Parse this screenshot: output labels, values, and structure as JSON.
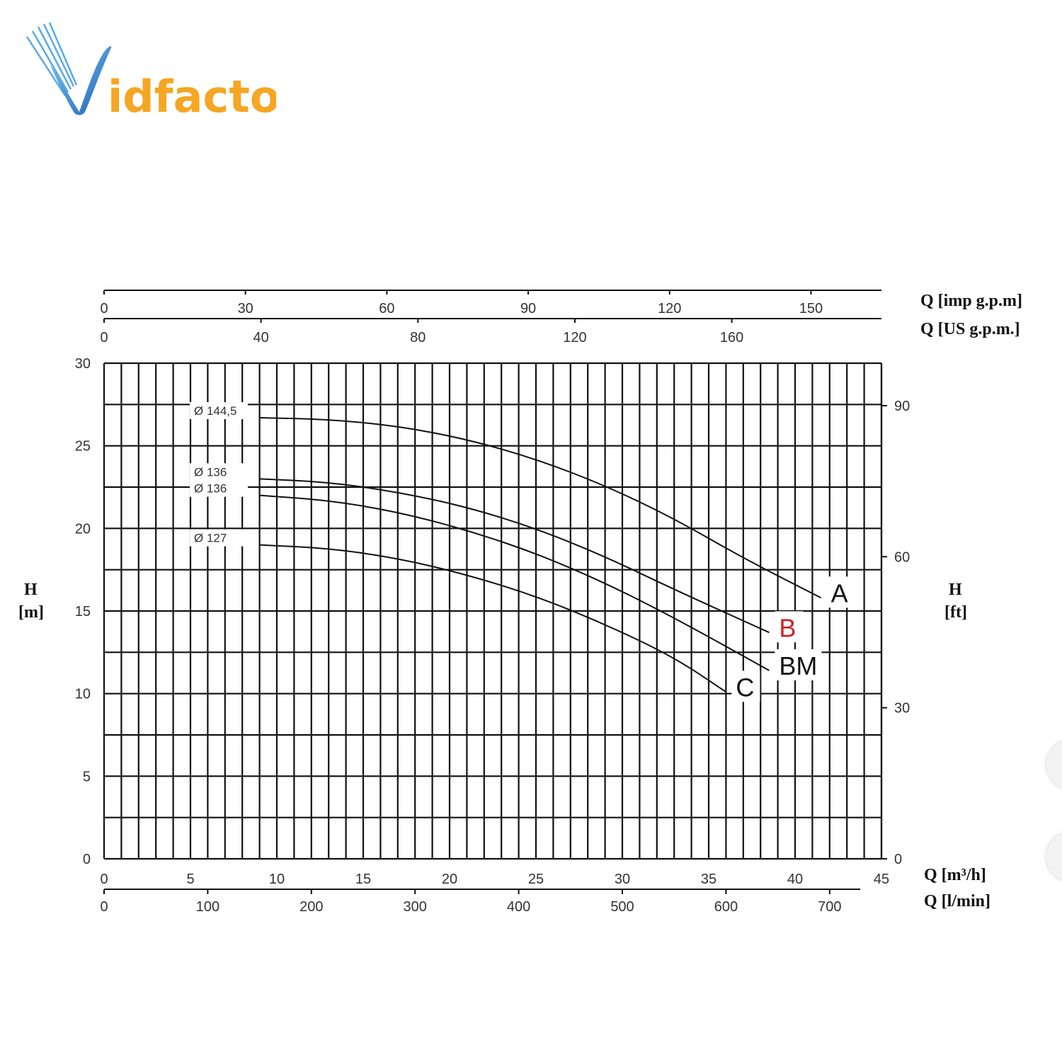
{
  "logo": {
    "wordmark_accent": "V",
    "wordmark_rest": "idfactor",
    "colors": {
      "blue": "#1e6fc8",
      "orange": "#f5a623"
    }
  },
  "chart_data": {
    "type": "line",
    "x_axis_bottom": {
      "label": "Q [m³/h]",
      "ticks": [
        0,
        5,
        10,
        15,
        20,
        25,
        30,
        35,
        40,
        45
      ],
      "range": [
        0,
        45
      ]
    },
    "x_axis_bottom2": {
      "label": "Q [l/min]",
      "ticks": [
        0,
        100,
        200,
        300,
        400,
        500,
        600,
        700
      ],
      "range": [
        0,
        750
      ]
    },
    "x_axis_top": {
      "label": "Q [imp g.p.m]",
      "ticks": [
        0,
        30,
        60,
        90,
        120,
        150
      ]
    },
    "x_axis_top2": {
      "label": "Q [US g.p.m.]",
      "ticks": [
        0,
        40,
        80,
        120,
        160
      ]
    },
    "y_axis_left": {
      "label_line1": "H",
      "label_line2": "[m]",
      "ticks": [
        0,
        5,
        10,
        15,
        20,
        25,
        30
      ],
      "range": [
        0,
        30
      ]
    },
    "y_axis_right": {
      "label_line1": "H",
      "label_line2": "[ft]",
      "ticks": [
        0,
        30,
        60,
        90
      ]
    },
    "grid": true,
    "series": [
      {
        "name": "A",
        "diameter_label": "Ø 144,5",
        "color": "#111111",
        "points": [
          [
            9,
            26.7
          ],
          [
            13,
            26.6
          ],
          [
            17,
            26.2
          ],
          [
            21,
            25.4
          ],
          [
            25,
            24.2
          ],
          [
            29,
            22.6
          ],
          [
            33,
            20.6
          ],
          [
            37,
            18.2
          ],
          [
            41.5,
            15.8
          ]
        ]
      },
      {
        "name": "B",
        "diameter_label": "Ø 136",
        "color": "#cc2222",
        "points": [
          [
            9,
            23
          ],
          [
            13,
            22.8
          ],
          [
            17,
            22.2
          ],
          [
            21,
            21.3
          ],
          [
            25,
            20
          ],
          [
            29,
            18.3
          ],
          [
            33,
            16.3
          ],
          [
            38.5,
            13.7
          ]
        ]
      },
      {
        "name": "BM",
        "diameter_label": "Ø 136",
        "color": "#111111",
        "points": [
          [
            9,
            22
          ],
          [
            13,
            21.7
          ],
          [
            17,
            21
          ],
          [
            21,
            19.9
          ],
          [
            25,
            18.5
          ],
          [
            29,
            16.7
          ],
          [
            33,
            14.6
          ],
          [
            38.5,
            11.4
          ]
        ]
      },
      {
        "name": "C",
        "diameter_label": "Ø 127",
        "color": "#111111",
        "points": [
          [
            9,
            19
          ],
          [
            13,
            18.8
          ],
          [
            17,
            18.2
          ],
          [
            21,
            17.2
          ],
          [
            25,
            15.9
          ],
          [
            29,
            14.2
          ],
          [
            33,
            12.2
          ],
          [
            36,
            10.1
          ]
        ]
      }
    ]
  }
}
